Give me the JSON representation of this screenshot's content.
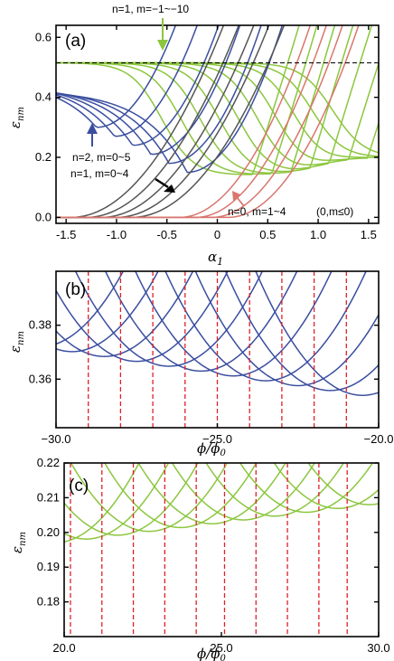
{
  "colors": {
    "green": "#8cc63e",
    "blue": "#3a4ea0",
    "gray": "#555555",
    "red_curve": "#d8766e",
    "red_dash": "#e0202a",
    "arrow_green": "#8cc63e",
    "arrow_blue": "#3a4ea0",
    "arrow_black": "#000000",
    "arrow_red": "#d8766e"
  },
  "chart_data": [
    {
      "panel": "(a)",
      "type": "line",
      "xlabel": "α1",
      "ylabel": "ε_nm",
      "xlim": [
        -1.6,
        1.6
      ],
      "ylim": [
        -0.02,
        0.64
      ],
      "xticks": [
        "-1.5",
        "-1.0",
        "-0.5",
        "0",
        "0.5",
        "1.0",
        "1.5"
      ],
      "xtick_values": [
        -1.5,
        -1.0,
        -0.5,
        0,
        0.5,
        1.0,
        1.5
      ],
      "yticks": [
        "0.0",
        "0.2",
        "0.4",
        "0.6"
      ],
      "ytick_values": [
        0,
        0.2,
        0.4,
        0.6
      ],
      "dashed_level": 0.515,
      "annotations": [
        "n=1, m=−1~−10",
        "n=2, m=0~5",
        "n=1, m=0~4",
        "n=0, m=1~4",
        "(0,m≤0)"
      ],
      "series": [
        {
          "group": "n=1, m<0",
          "color": "green",
          "count": 10
        },
        {
          "group": "n=2, m>=0",
          "color": "blue",
          "count": 6
        },
        {
          "group": "n=1, m>=0",
          "color": "gray",
          "count": 5
        },
        {
          "group": "n=0, m>0",
          "color": "red_curve",
          "count": 4
        }
      ]
    },
    {
      "panel": "(b)",
      "type": "line",
      "xlabel": "φ/φ0",
      "ylabel": "ε_nm",
      "xlim": [
        -30,
        -20
      ],
      "ylim": [
        0.342,
        0.4
      ],
      "xticks": [
        "−30.0",
        "−25.0",
        "−20.0"
      ],
      "xtick_values": [
        -30,
        -25,
        -20
      ],
      "yticks": [
        "0.36",
        "0.38"
      ],
      "ytick_values": [
        0.36,
        0.38
      ],
      "dashed_x": [
        -29,
        -28,
        -27,
        -26,
        -25,
        -24,
        -23,
        -22,
        -21
      ],
      "series": [
        {
          "color": "blue",
          "count": 11
        }
      ]
    },
    {
      "panel": "(c)",
      "type": "line",
      "xlabel": "φ/φ0",
      "ylabel": "ε_nm",
      "xlim": [
        20,
        30
      ],
      "ylim": [
        0.17,
        0.22
      ],
      "xticks": [
        "20.0",
        "25.0",
        "30.0"
      ],
      "xtick_values": [
        20,
        25,
        30
      ],
      "yticks": [
        "0.18",
        "0.19",
        "0.20",
        "0.21",
        "0.22"
      ],
      "ytick_values": [
        0.18,
        0.19,
        0.2,
        0.21,
        0.22
      ],
      "dashed_x": [
        20.2,
        21.2,
        22.2,
        23.2,
        24.2,
        25.1,
        26.1,
        27.1,
        28.1,
        29.0
      ],
      "series": [
        {
          "color": "green",
          "count": 11
        }
      ]
    }
  ]
}
